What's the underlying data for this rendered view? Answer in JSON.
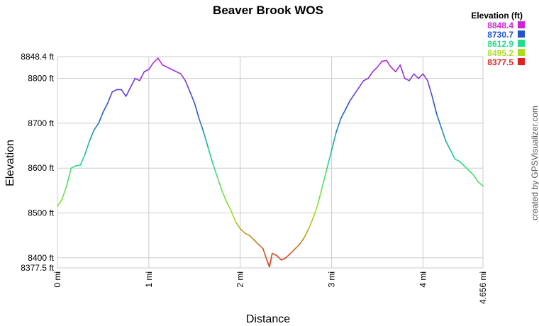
{
  "chart_data": {
    "type": "line",
    "title": "Beaver Brook WOS",
    "xlabel": "Distance",
    "ylabel": "Elevation",
    "xlim": [
      0,
      4.656
    ],
    "ylim": [
      8377.5,
      8848.4
    ],
    "x_ticks": [
      {
        "value": 0,
        "label": "0 mi"
      },
      {
        "value": 1,
        "label": "1 mi"
      },
      {
        "value": 2,
        "label": "2 mi"
      },
      {
        "value": 3,
        "label": "3 mi"
      },
      {
        "value": 4,
        "label": "4 mi"
      },
      {
        "value": 4.656,
        "label": "4.656 mi"
      }
    ],
    "y_ticks": [
      {
        "value": 8377.5,
        "label": "8377.5 ft"
      },
      {
        "value": 8400,
        "label": "8400 ft"
      },
      {
        "value": 8500,
        "label": "8500 ft"
      },
      {
        "value": 8600,
        "label": "8600 ft"
      },
      {
        "value": 8700,
        "label": "8700 ft"
      },
      {
        "value": 8800,
        "label": "8800 ft"
      },
      {
        "value": 8848.4,
        "label": "8848.4 ft"
      }
    ],
    "grid": true,
    "legend": {
      "title": "Elevation (ft)",
      "placement": "top-right",
      "entries": [
        {
          "label": "8848.4",
          "color": "#cc22dd"
        },
        {
          "label": "8730.7",
          "color": "#2255cc"
        },
        {
          "label": "8612.9",
          "color": "#22dd88"
        },
        {
          "label": "8495.2",
          "color": "#aadd22"
        },
        {
          "label": "8377.5",
          "color": "#dd2222"
        }
      ]
    },
    "color_scale": [
      "#dd2222",
      "#aadd22",
      "#22dd88",
      "#2255cc",
      "#cc22dd"
    ],
    "series": [
      {
        "x": [
          0.0,
          0.05,
          0.1,
          0.15,
          0.2,
          0.25,
          0.3,
          0.35,
          0.4,
          0.45,
          0.5,
          0.55,
          0.6,
          0.65,
          0.7,
          0.75,
          0.8,
          0.85,
          0.9,
          0.95,
          1.0,
          1.05,
          1.1,
          1.15,
          1.2,
          1.25,
          1.3,
          1.35,
          1.4,
          1.45,
          1.5,
          1.55,
          1.6,
          1.65,
          1.7,
          1.75,
          1.8,
          1.85,
          1.9,
          1.95,
          2.0,
          2.05,
          2.1,
          2.15,
          2.2,
          2.25,
          2.3,
          2.32,
          2.35,
          2.4,
          2.45,
          2.5,
          2.55,
          2.6,
          2.65,
          2.7,
          2.75,
          2.8,
          2.85,
          2.9,
          2.95,
          3.0,
          3.05,
          3.1,
          3.15,
          3.2,
          3.25,
          3.3,
          3.35,
          3.4,
          3.45,
          3.5,
          3.55,
          3.6,
          3.65,
          3.7,
          3.75,
          3.8,
          3.85,
          3.9,
          3.95,
          4.0,
          4.05,
          4.1,
          4.15,
          4.2,
          4.25,
          4.3,
          4.35,
          4.4,
          4.45,
          4.5,
          4.55,
          4.6,
          4.656
        ],
        "y": [
          8515,
          8530,
          8560,
          8600,
          8605,
          8607,
          8630,
          8660,
          8685,
          8700,
          8725,
          8745,
          8770,
          8775,
          8775,
          8760,
          8780,
          8800,
          8795,
          8815,
          8820,
          8835,
          8845,
          8830,
          8825,
          8820,
          8815,
          8810,
          8795,
          8770,
          8745,
          8710,
          8680,
          8645,
          8610,
          8580,
          8550,
          8525,
          8505,
          8480,
          8465,
          8455,
          8450,
          8440,
          8430,
          8420,
          8390,
          8380,
          8410,
          8405,
          8395,
          8400,
          8410,
          8420,
          8430,
          8445,
          8465,
          8490,
          8520,
          8560,
          8600,
          8640,
          8680,
          8710,
          8730,
          8750,
          8765,
          8780,
          8795,
          8800,
          8815,
          8825,
          8838,
          8840,
          8825,
          8815,
          8830,
          8800,
          8795,
          8810,
          8800,
          8810,
          8795,
          8760,
          8720,
          8690,
          8660,
          8640,
          8620,
          8615,
          8605,
          8595,
          8585,
          8570,
          8560
        ]
      }
    ],
    "credit": "created by GPSVisualizer.com"
  }
}
